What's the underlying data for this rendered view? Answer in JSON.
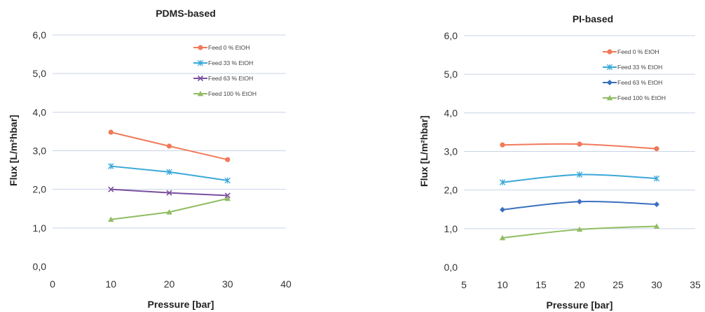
{
  "chart_data": [
    {
      "type": "line",
      "title": "PDMS-based",
      "xlabel": "Pressure [bar]",
      "ylabel": "Flux [L/m²hbar]",
      "xlim": [
        0,
        40
      ],
      "ylim": [
        0,
        6
      ],
      "x_ticks": [
        "0",
        "10",
        "20",
        "30",
        "40"
      ],
      "y_ticks": [
        "0,0",
        "1,0",
        "2,0",
        "3,0",
        "4,0",
        "5,0",
        "6,0"
      ],
      "grid": "horizontal",
      "legend_position": "top-right",
      "series": [
        {
          "name": "Feed 0 % EtOH",
          "color": "#f07a5a",
          "marker": "circle",
          "x": [
            10,
            20,
            30
          ],
          "y": [
            3.48,
            3.12,
            2.77
          ]
        },
        {
          "name": "Feed 33 % EtOH",
          "color": "#3aa8d8",
          "marker": "star",
          "x": [
            10,
            20,
            30
          ],
          "y": [
            2.6,
            2.45,
            2.23
          ]
        },
        {
          "name": "Feed 63 % EtOH",
          "color": "#7a4fa0",
          "marker": "x",
          "x": [
            10,
            20,
            30
          ],
          "y": [
            2.0,
            1.91,
            1.84
          ]
        },
        {
          "name": "Feed 100 % EtOH",
          "color": "#90bd62",
          "marker": "triangle",
          "x": [
            10,
            20,
            30
          ],
          "y": [
            1.22,
            1.41,
            1.76
          ]
        }
      ]
    },
    {
      "type": "line",
      "title": "PI-based",
      "xlabel": "Pressure [bar]",
      "ylabel": "Flux [L/m²hbar]",
      "xlim": [
        5,
        35
      ],
      "ylim": [
        0,
        6
      ],
      "x_ticks": [
        "5",
        "10",
        "15",
        "20",
        "25",
        "30",
        "35"
      ],
      "y_ticks": [
        "0,0",
        "1,0",
        "2,0",
        "3,0",
        "4,0",
        "5,0",
        "6,0"
      ],
      "grid": "horizontal",
      "legend_position": "top-right",
      "smooth": true,
      "series": [
        {
          "name": "Feed 0 % EtOH",
          "color": "#f07a5a",
          "marker": "circle",
          "x": [
            10,
            20,
            30
          ],
          "y": [
            3.17,
            3.19,
            3.07
          ]
        },
        {
          "name": "Feed 33 % EtOH",
          "color": "#3aa8d8",
          "marker": "star",
          "x": [
            10,
            20,
            30
          ],
          "y": [
            2.2,
            2.4,
            2.3
          ]
        },
        {
          "name": "Feed 63 % EtOH",
          "color": "#3a6fc0",
          "marker": "diamond",
          "x": [
            10,
            20,
            30
          ],
          "y": [
            1.49,
            1.7,
            1.63
          ]
        },
        {
          "name": "Feed 100 % EtOH",
          "color": "#90bd62",
          "marker": "triangle",
          "x": [
            10,
            20,
            30
          ],
          "y": [
            0.76,
            0.98,
            1.06
          ]
        }
      ]
    }
  ]
}
